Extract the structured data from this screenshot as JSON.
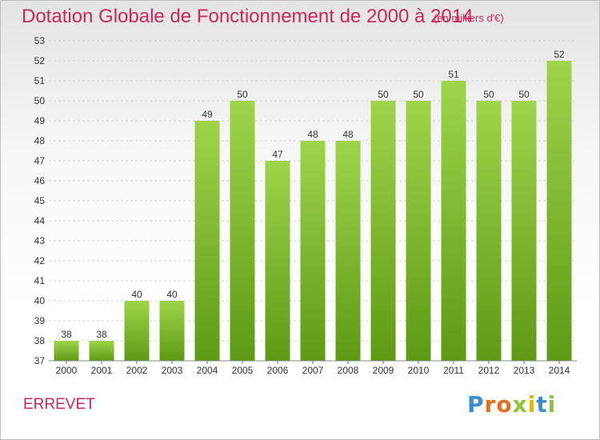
{
  "title": "Dotation Globale de Fonctionnement de 2000 à 2014",
  "subtitle": "(en milliers d'€)",
  "commune": "ERREVET",
  "logo": {
    "text": "Proxiti"
  },
  "colors": {
    "title": "#c8285a",
    "bar_light": "#9fd44a",
    "bar_dark": "#5e9a14",
    "grid": "#d2d2d2",
    "axis_text": "#333333"
  },
  "chart_data": {
    "type": "bar",
    "categories": [
      "2000",
      "2001",
      "2002",
      "2003",
      "2004",
      "2005",
      "2006",
      "2007",
      "2008",
      "2009",
      "2010",
      "2011",
      "2012",
      "2013",
      "2014"
    ],
    "values": [
      38,
      38,
      40,
      40,
      49,
      50,
      47,
      48,
      48,
      50,
      50,
      51,
      50,
      50,
      52
    ],
    "ylim": [
      37,
      53
    ],
    "yticks": [
      37,
      38,
      39,
      40,
      41,
      42,
      43,
      44,
      45,
      46,
      47,
      48,
      49,
      50,
      51,
      52,
      53
    ],
    "grid": true,
    "legend": "none"
  }
}
